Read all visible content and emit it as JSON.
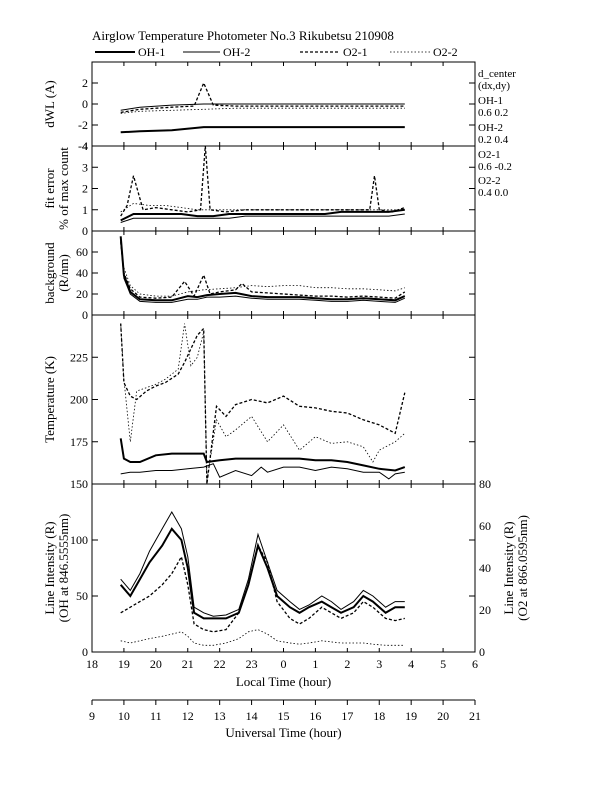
{
  "header": {
    "title": "Airglow Temperature Photometer No.3  Rikubetsu    210908"
  },
  "legend": {
    "items": [
      {
        "name": "OH-1",
        "style": "solid-thick"
      },
      {
        "name": "OH-2",
        "style": "solid-thin"
      },
      {
        "name": "O2-1",
        "style": "dash"
      },
      {
        "name": "O2-2",
        "style": "dot"
      }
    ]
  },
  "side_annotations": {
    "d_center": "d_center",
    "dxdy": "(dx,dy)",
    "oh1": "OH-1",
    "oh1_val": "0.6   0.2",
    "oh2": "OH-2",
    "oh2_val": "0.2   0.4",
    "o21": "O2-1",
    "o21_val": "0.6   -0.2",
    "o22": "O2-2",
    "o22_val": "0.4   0.0"
  },
  "colors": {
    "line": "#000000",
    "background": "#ffffff"
  },
  "chart_data": [
    {
      "type": "line",
      "panel": "dWL",
      "ylabel": "dWL (A)",
      "ylim": [
        -4,
        4
      ],
      "yticks": [
        -4,
        -2,
        0,
        2
      ],
      "xlim": [
        18,
        6
      ],
      "series": [
        {
          "name": "OH-1",
          "x": [
            18.9,
            19.5,
            20.5,
            21.5,
            22.5,
            23.5,
            0.5,
            1.5,
            2.5,
            3.8
          ],
          "y": [
            -2.7,
            -2.6,
            -2.5,
            -2.2,
            -2.2,
            -2.2,
            -2.2,
            -2.2,
            -2.2,
            -2.2
          ]
        },
        {
          "name": "OH-2",
          "x": [
            18.9,
            19.5,
            20.5,
            21.5,
            22.5,
            23.5,
            0.5,
            1.5,
            2.5,
            3.8
          ],
          "y": [
            -0.6,
            -0.3,
            -0.1,
            0.0,
            0.0,
            0.0,
            0.0,
            0.0,
            0.0,
            0.0
          ]
        },
        {
          "name": "O2-1",
          "x": [
            18.9,
            19.5,
            20.5,
            21.2,
            21.5,
            21.8,
            22.5,
            23.5,
            0.5,
            1.5,
            2.5,
            3.8
          ],
          "y": [
            -0.8,
            -0.5,
            -0.3,
            -0.2,
            2.0,
            -0.1,
            -0.2,
            -0.2,
            -0.2,
            -0.2,
            -0.2,
            -0.2
          ]
        },
        {
          "name": "O2-2",
          "x": [
            18.9,
            19.5,
            20.5,
            21.5,
            22.5,
            23.5,
            0.5,
            1.5,
            2.5,
            3.8
          ],
          "y": [
            -0.9,
            -0.7,
            -0.6,
            -0.5,
            -0.4,
            -0.4,
            -0.4,
            -0.4,
            -0.4,
            -0.4
          ]
        }
      ]
    },
    {
      "type": "line",
      "panel": "fit error",
      "ylabel": "fit error",
      "ylabel2": "% of max count",
      "ylim": [
        0,
        4
      ],
      "yticks": [
        0,
        1,
        2,
        3,
        4
      ],
      "xlim": [
        18,
        6
      ],
      "series": [
        {
          "name": "OH-1",
          "x": [
            18.9,
            19.3,
            19.8,
            20.3,
            20.8,
            21.3,
            21.8,
            22.3,
            22.8,
            23.3,
            23.8,
            0.3,
            0.8,
            1.3,
            1.8,
            2.3,
            2.8,
            3.3,
            3.8
          ],
          "y": [
            0.5,
            0.8,
            0.8,
            0.8,
            0.8,
            0.7,
            0.7,
            0.8,
            0.8,
            0.8,
            0.8,
            0.8,
            0.8,
            0.8,
            0.9,
            0.9,
            0.9,
            0.9,
            1.0
          ]
        },
        {
          "name": "OH-2",
          "x": [
            18.9,
            19.3,
            19.8,
            20.3,
            20.8,
            21.3,
            21.8,
            22.3,
            22.8,
            23.3,
            23.8,
            0.3,
            0.8,
            1.3,
            1.8,
            2.3,
            2.8,
            3.3,
            3.8
          ],
          "y": [
            0.4,
            0.6,
            0.6,
            0.6,
            0.6,
            0.6,
            0.6,
            0.6,
            0.7,
            0.7,
            0.7,
            0.7,
            0.7,
            0.7,
            0.7,
            0.7,
            0.7,
            0.7,
            0.8
          ]
        },
        {
          "name": "O2-1",
          "x": [
            18.9,
            19.1,
            19.3,
            19.6,
            20.0,
            20.5,
            21.0,
            21.4,
            21.55,
            21.7,
            22.2,
            22.8,
            23.5,
            0.5,
            1.5,
            2.3,
            2.7,
            2.85,
            3.0,
            3.4,
            3.8
          ],
          "y": [
            0.7,
            1.2,
            2.6,
            1.0,
            1.1,
            1.0,
            0.9,
            1.0,
            4.0,
            1.0,
            0.9,
            1.0,
            1.0,
            1.0,
            1.0,
            1.0,
            1.0,
            2.6,
            1.0,
            0.9,
            1.1
          ]
        },
        {
          "name": "O2-2",
          "x": [
            18.9,
            19.3,
            19.8,
            20.3,
            20.8,
            21.3,
            21.8,
            22.3,
            22.8,
            23.3,
            23.8,
            0.3,
            0.8,
            1.3,
            1.8,
            2.3,
            2.8,
            3.3,
            3.8
          ],
          "y": [
            0.9,
            1.3,
            1.2,
            1.2,
            1.1,
            1.0,
            1.0,
            1.0,
            1.0,
            1.0,
            1.0,
            1.0,
            1.0,
            1.0,
            1.0,
            1.0,
            1.0,
            1.0,
            1.0
          ]
        }
      ]
    },
    {
      "type": "line",
      "panel": "background",
      "ylabel": "background",
      "ylabel2": "(R/nm)",
      "ylim": [
        0,
        80
      ],
      "yticks": [
        0,
        20,
        40,
        60
      ],
      "xlim": [
        18,
        6
      ],
      "series": [
        {
          "name": "OH-1",
          "x": [
            18.9,
            19.0,
            19.2,
            19.5,
            20.0,
            20.5,
            21.0,
            21.3,
            21.6,
            22.0,
            22.5,
            23.0,
            23.5,
            0.0,
            0.5,
            1.0,
            1.5,
            2.0,
            2.5,
            3.0,
            3.5,
            3.8
          ],
          "y": [
            75,
            38,
            22,
            15,
            14,
            14,
            18,
            17,
            19,
            20,
            21,
            18,
            17,
            17,
            17,
            16,
            15,
            15,
            16,
            15,
            14,
            18
          ]
        },
        {
          "name": "OH-2",
          "x": [
            18.9,
            19.0,
            19.2,
            19.5,
            20.0,
            20.5,
            21.0,
            21.3,
            21.6,
            22.0,
            22.5,
            23.0,
            23.5,
            0.0,
            0.5,
            1.0,
            1.5,
            2.0,
            2.5,
            3.0,
            3.5,
            3.8
          ],
          "y": [
            72,
            35,
            20,
            13,
            12,
            12,
            15,
            15,
            17,
            17,
            18,
            16,
            15,
            15,
            15,
            14,
            13,
            13,
            14,
            13,
            12,
            16
          ]
        },
        {
          "name": "O2-1",
          "x": [
            18.9,
            19.0,
            19.2,
            19.5,
            20.0,
            20.5,
            20.9,
            21.2,
            21.5,
            21.7,
            22.0,
            22.5,
            22.7,
            23.0,
            23.5,
            0.0,
            0.5,
            1.0,
            1.5,
            2.0,
            2.5,
            3.0,
            3.5,
            3.8
          ],
          "y": [
            70,
            40,
            25,
            17,
            16,
            17,
            32,
            18,
            38,
            20,
            22,
            24,
            30,
            22,
            21,
            20,
            19,
            18,
            18,
            17,
            18,
            17,
            16,
            22
          ]
        },
        {
          "name": "O2-2",
          "x": [
            18.9,
            19.0,
            19.2,
            19.5,
            20.0,
            20.5,
            21.0,
            21.5,
            22.0,
            22.5,
            23.0,
            23.5,
            0.0,
            0.5,
            1.0,
            1.5,
            2.0,
            2.5,
            3.0,
            3.5,
            3.8
          ],
          "y": [
            68,
            45,
            28,
            20,
            18,
            18,
            22,
            24,
            25,
            26,
            28,
            27,
            28,
            28,
            26,
            26,
            25,
            25,
            24,
            23,
            26
          ]
        }
      ]
    },
    {
      "type": "line",
      "panel": "temperature",
      "ylabel": "Temperature (K)",
      "ylim": [
        150,
        250
      ],
      "yticks": [
        150,
        175,
        200,
        225
      ],
      "xlim": [
        18,
        6
      ],
      "series": [
        {
          "name": "OH-1",
          "x": [
            18.9,
            19.0,
            19.2,
            19.5,
            20.0,
            20.5,
            21.0,
            21.5,
            21.6,
            22.0,
            22.5,
            23.0,
            23.5,
            0.0,
            0.5,
            1.0,
            1.5,
            2.0,
            2.5,
            3.0,
            3.5,
            3.8
          ],
          "y": [
            177,
            165,
            163,
            163,
            167,
            168,
            168,
            168,
            163,
            164,
            165,
            165,
            165,
            165,
            165,
            164,
            164,
            163,
            161,
            159,
            158,
            160
          ]
        },
        {
          "name": "OH-2",
          "x": [
            18.9,
            19.2,
            19.5,
            20.0,
            20.5,
            21.0,
            21.5,
            21.8,
            22.0,
            22.5,
            23.0,
            23.3,
            23.5,
            0.0,
            0.5,
            1.0,
            1.5,
            2.0,
            2.5,
            3.0,
            3.3,
            3.5,
            3.8
          ],
          "y": [
            156,
            157,
            157,
            158,
            158,
            159,
            160,
            162,
            154,
            158,
            155,
            160,
            157,
            160,
            160,
            158,
            160,
            159,
            157,
            157,
            153,
            156,
            157
          ]
        },
        {
          "name": "O2-1",
          "x": [
            18.9,
            19.0,
            19.2,
            19.4,
            19.7,
            20.0,
            20.3,
            20.7,
            20.9,
            21.1,
            21.3,
            21.5,
            21.6,
            21.9,
            22.2,
            22.5,
            23.0,
            23.5,
            0.0,
            0.5,
            1.0,
            1.5,
            2.0,
            2.5,
            3.0,
            3.5,
            3.8
          ],
          "y": [
            245,
            210,
            202,
            200,
            205,
            208,
            210,
            215,
            222,
            230,
            238,
            242,
            150,
            196,
            190,
            197,
            200,
            198,
            202,
            196,
            195,
            193,
            192,
            188,
            185,
            180,
            204
          ]
        },
        {
          "name": "O2-2",
          "x": [
            18.9,
            19.0,
            19.2,
            19.4,
            19.7,
            20.0,
            20.3,
            20.7,
            20.9,
            21.1,
            21.3,
            21.5,
            21.6,
            21.9,
            22.2,
            22.5,
            23.0,
            23.5,
            0.0,
            0.5,
            1.0,
            1.5,
            2.0,
            2.5,
            2.8,
            3.0,
            3.5,
            3.8
          ],
          "y": [
            245,
            212,
            175,
            205,
            207,
            209,
            212,
            218,
            245,
            220,
            225,
            240,
            152,
            188,
            178,
            182,
            190,
            175,
            185,
            170,
            178,
            174,
            175,
            172,
            163,
            170,
            175,
            180
          ]
        }
      ]
    },
    {
      "type": "line",
      "panel": "line intensity",
      "ylabel": "Line Intensity (R)",
      "ylabel2": "(OH at 846.5555nm)",
      "y2label": "Line Intensity (R)",
      "y2label2": "(O2 at 866.0595nm)",
      "ylim": [
        0,
        150
      ],
      "yticks": [
        0,
        50,
        100
      ],
      "y2lim": [
        0,
        80
      ],
      "y2ticks": [
        0,
        20,
        40,
        60,
        80
      ],
      "xlim": [
        18,
        6
      ],
      "xlabel": "Local Time (hour)",
      "xticks": [
        18,
        19,
        20,
        21,
        22,
        23,
        0,
        1,
        2,
        3,
        4,
        5,
        6
      ],
      "x2label": "Universal Time (hour)",
      "x2ticks": [
        9,
        10,
        11,
        12,
        13,
        14,
        15,
        16,
        17,
        18,
        19,
        20,
        21
      ],
      "series": [
        {
          "name": "OH-1",
          "x": [
            18.9,
            19.2,
            19.5,
            19.8,
            20.2,
            20.5,
            20.8,
            21.0,
            21.2,
            21.5,
            21.8,
            22.2,
            22.6,
            22.9,
            23.2,
            23.5,
            23.8,
            0.2,
            0.5,
            0.8,
            1.2,
            1.5,
            1.8,
            2.2,
            2.5,
            2.8,
            3.2,
            3.5,
            3.8
          ],
          "y": [
            60,
            50,
            65,
            80,
            95,
            110,
            100,
            75,
            35,
            30,
            30,
            30,
            35,
            60,
            95,
            75,
            50,
            40,
            35,
            40,
            45,
            40,
            35,
            40,
            50,
            45,
            35,
            40,
            40
          ]
        },
        {
          "name": "OH-2",
          "x": [
            18.9,
            19.2,
            19.5,
            19.8,
            20.2,
            20.5,
            20.8,
            21.0,
            21.2,
            21.5,
            21.8,
            22.2,
            22.6,
            22.9,
            23.2,
            23.5,
            23.8,
            0.2,
            0.5,
            0.8,
            1.2,
            1.5,
            1.8,
            2.2,
            2.5,
            2.8,
            3.2,
            3.5,
            3.8
          ],
          "y": [
            65,
            55,
            70,
            90,
            110,
            125,
            110,
            85,
            40,
            35,
            32,
            33,
            38,
            65,
            105,
            80,
            55,
            45,
            38,
            42,
            50,
            45,
            38,
            45,
            55,
            50,
            40,
            45,
            45
          ]
        },
        {
          "name": "O2-1",
          "x": [
            18.9,
            19.2,
            19.5,
            19.8,
            20.2,
            20.5,
            20.8,
            21.0,
            21.2,
            21.5,
            21.8,
            22.2,
            22.6,
            22.9,
            23.2,
            23.5,
            23.8,
            0.2,
            0.5,
            0.8,
            1.2,
            1.5,
            1.8,
            2.2,
            2.5,
            2.8,
            3.2,
            3.5,
            3.8
          ],
          "y": [
            35,
            40,
            45,
            50,
            60,
            70,
            85,
            60,
            25,
            20,
            18,
            20,
            35,
            60,
            95,
            80,
            45,
            30,
            25,
            30,
            40,
            35,
            30,
            35,
            45,
            40,
            30,
            28,
            30
          ]
        },
        {
          "name": "O2-2",
          "x": [
            18.9,
            19.2,
            19.5,
            19.8,
            20.2,
            20.5,
            20.8,
            21.0,
            21.2,
            21.5,
            21.8,
            22.2,
            22.6,
            22.9,
            23.2,
            23.5,
            23.8,
            0.2,
            0.5,
            0.8,
            1.2,
            1.5,
            1.8,
            2.2,
            2.5,
            2.8,
            3.2,
            3.5,
            3.8
          ],
          "y": [
            10,
            8,
            10,
            12,
            14,
            16,
            18,
            14,
            8,
            6,
            6,
            8,
            12,
            18,
            20,
            16,
            10,
            8,
            7,
            8,
            10,
            9,
            8,
            8,
            8,
            7,
            6,
            6,
            6
          ]
        }
      ]
    }
  ]
}
